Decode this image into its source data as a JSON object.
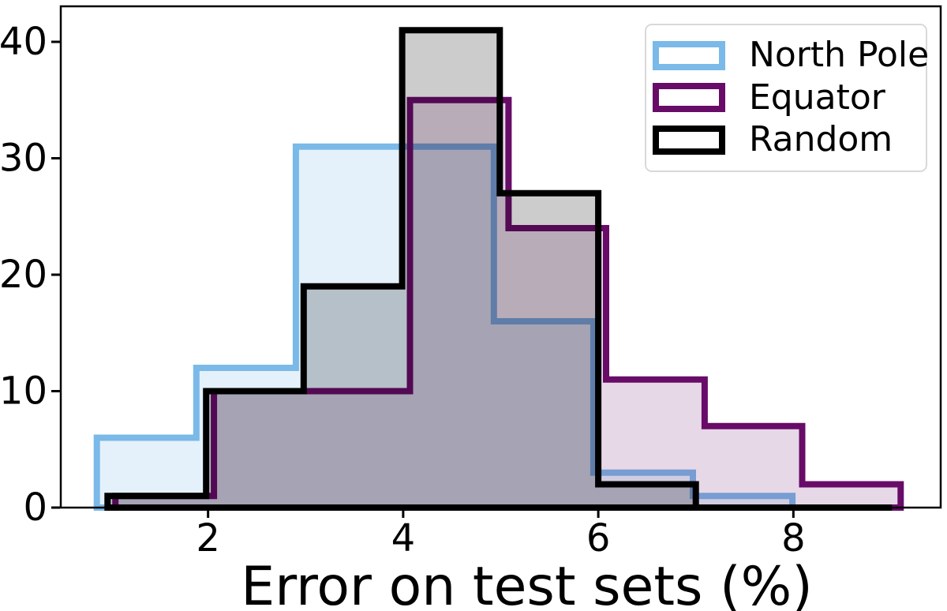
{
  "chart_data": {
    "type": "histogram",
    "histtype": "overlaid-stepfilled",
    "title": "",
    "xlabel": "Error on test sets (%)",
    "ylabel": "",
    "xlim": [
      0.49,
      9.51
    ],
    "ylim": [
      0,
      43.05
    ],
    "xticks": [
      2,
      4,
      6,
      8
    ],
    "yticks": [
      0,
      10,
      20,
      30,
      40
    ],
    "grid": false,
    "axis_color": "#000000",
    "legend": {
      "position": "upper-right"
    },
    "series": [
      {
        "name": "North Pole",
        "line_color": "#7ab9e8",
        "fill_alpha": 0.2,
        "line_width": 8,
        "bin_edges": [
          0.86,
          1.88,
          2.9,
          3.91,
          4.93,
          5.95,
          6.97,
          7.99,
          9.0
        ],
        "counts": [
          6,
          12,
          31,
          31,
          16,
          3,
          1,
          0
        ]
      },
      {
        "name": "Equator",
        "line_color": "#680c68",
        "fill_alpha": 0.16,
        "line_width": 8,
        "bin_edges": [
          1.05,
          2.06,
          3.06,
          4.07,
          5.08,
          6.08,
          7.09,
          8.09,
          9.1
        ],
        "counts": [
          1,
          10,
          10,
          35,
          24,
          11,
          7,
          2
        ]
      },
      {
        "name": "Random",
        "line_color": "#000000",
        "fill_alpha": 0.2,
        "line_width": 8,
        "bin_edges": [
          0.97,
          1.98,
          2.98,
          3.99,
          4.99,
          6.0,
          7.0,
          8.01,
          9.01
        ],
        "counts": [
          1,
          10,
          19,
          41,
          27,
          2,
          0,
          0
        ]
      }
    ]
  }
}
